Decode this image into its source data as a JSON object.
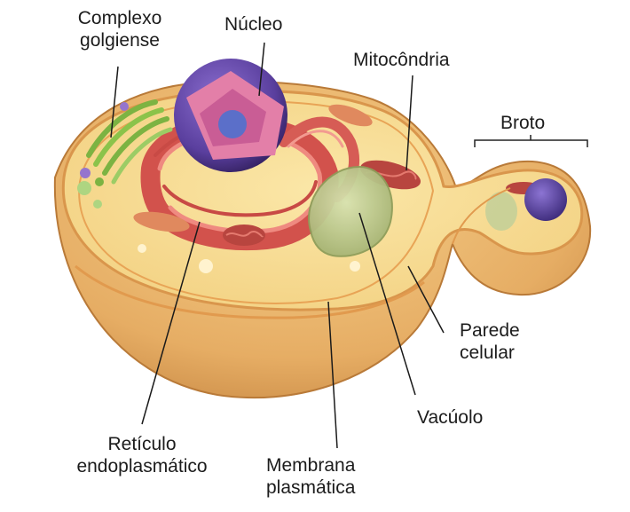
{
  "colors": {
    "cytoplasm": "#f7dc8e",
    "wall": "#e3a85a",
    "nucleus": "#5a3f9e",
    "er": "#e0605a",
    "mitochondria": "#b8453f",
    "vacuole": "#b9c78a",
    "golgi": "#7cb342"
  },
  "labels": {
    "golgi": [
      "Complexo",
      "golgiense"
    ],
    "nucleus": "Núcleo",
    "mitochondria": "Mitocôndria",
    "bud": "Broto",
    "cell_wall": [
      "Parede",
      "celular"
    ],
    "vacuole": "Vacúolo",
    "membrane": [
      "Membrana",
      "plasmática"
    ],
    "er": [
      "Retículo",
      "endoplasmático"
    ]
  }
}
